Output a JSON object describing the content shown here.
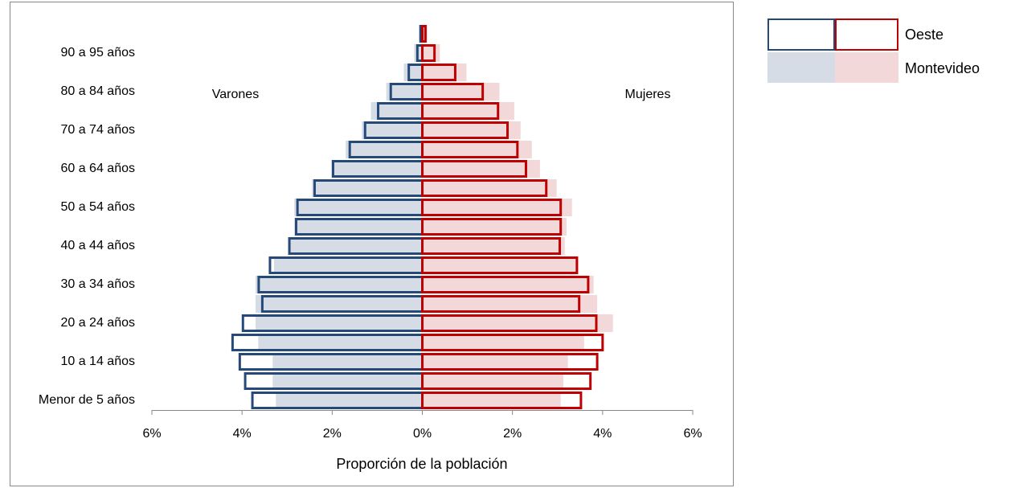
{
  "chart_data": {
    "type": "pyramid",
    "annotations": [
      "Varones",
      "Mujeres"
    ],
    "xlabel": "Proporción de la población",
    "categories": [
      "Menor de 5 años",
      null,
      "10 a 14 años",
      null,
      "20 a 24 años",
      null,
      "30 a 34 años",
      null,
      "40 a 44 años",
      null,
      "50 a 54 años",
      null,
      "60 a 64 años",
      null,
      "70 a 74 años",
      null,
      "80 a 84 años",
      null,
      "90 a 95 años",
      null
    ],
    "xlim": [
      -6,
      6
    ],
    "xticks": [
      {
        "value": -6,
        "label": "6%"
      },
      {
        "value": -4,
        "label": "4%"
      },
      {
        "value": -2,
        "label": "2%"
      },
      {
        "value": 0,
        "label": "0%"
      },
      {
        "value": 2,
        "label": "2%"
      },
      {
        "value": 4,
        "label": "4%"
      },
      {
        "value": 6,
        "label": "6%"
      }
    ],
    "series": [
      {
        "name": "Montevideo",
        "style": "filled",
        "male_color": "#d6dce5",
        "female_color": "#f2d8d8",
        "male": [
          -3.25,
          -3.32,
          -3.32,
          -3.64,
          -3.7,
          -3.7,
          -3.7,
          -3.29,
          -2.95,
          -2.84,
          -2.84,
          -2.45,
          -2.02,
          -1.7,
          -1.34,
          -1.14,
          -0.8,
          -0.41,
          -0.18,
          -0.07
        ],
        "female": [
          3.07,
          3.13,
          3.23,
          3.59,
          4.23,
          3.88,
          3.8,
          3.46,
          3.16,
          3.2,
          3.32,
          2.98,
          2.61,
          2.43,
          2.18,
          2.04,
          1.71,
          0.98,
          0.39,
          0.11
        ]
      },
      {
        "name": "Oeste",
        "style": "outline",
        "male_color": "#254a7a",
        "female_color": "#c00000",
        "male": [
          -3.77,
          -3.93,
          -4.05,
          -4.21,
          -3.98,
          -3.55,
          -3.63,
          -3.38,
          -2.95,
          -2.8,
          -2.77,
          -2.39,
          -1.98,
          -1.61,
          -1.27,
          -0.98,
          -0.7,
          -0.3,
          -0.11,
          -0.04
        ],
        "female": [
          3.52,
          3.73,
          3.88,
          4.0,
          3.86,
          3.48,
          3.68,
          3.43,
          3.05,
          3.07,
          3.07,
          2.75,
          2.3,
          2.11,
          1.89,
          1.68,
          1.34,
          0.73,
          0.27,
          0.07
        ]
      }
    ]
  }
}
